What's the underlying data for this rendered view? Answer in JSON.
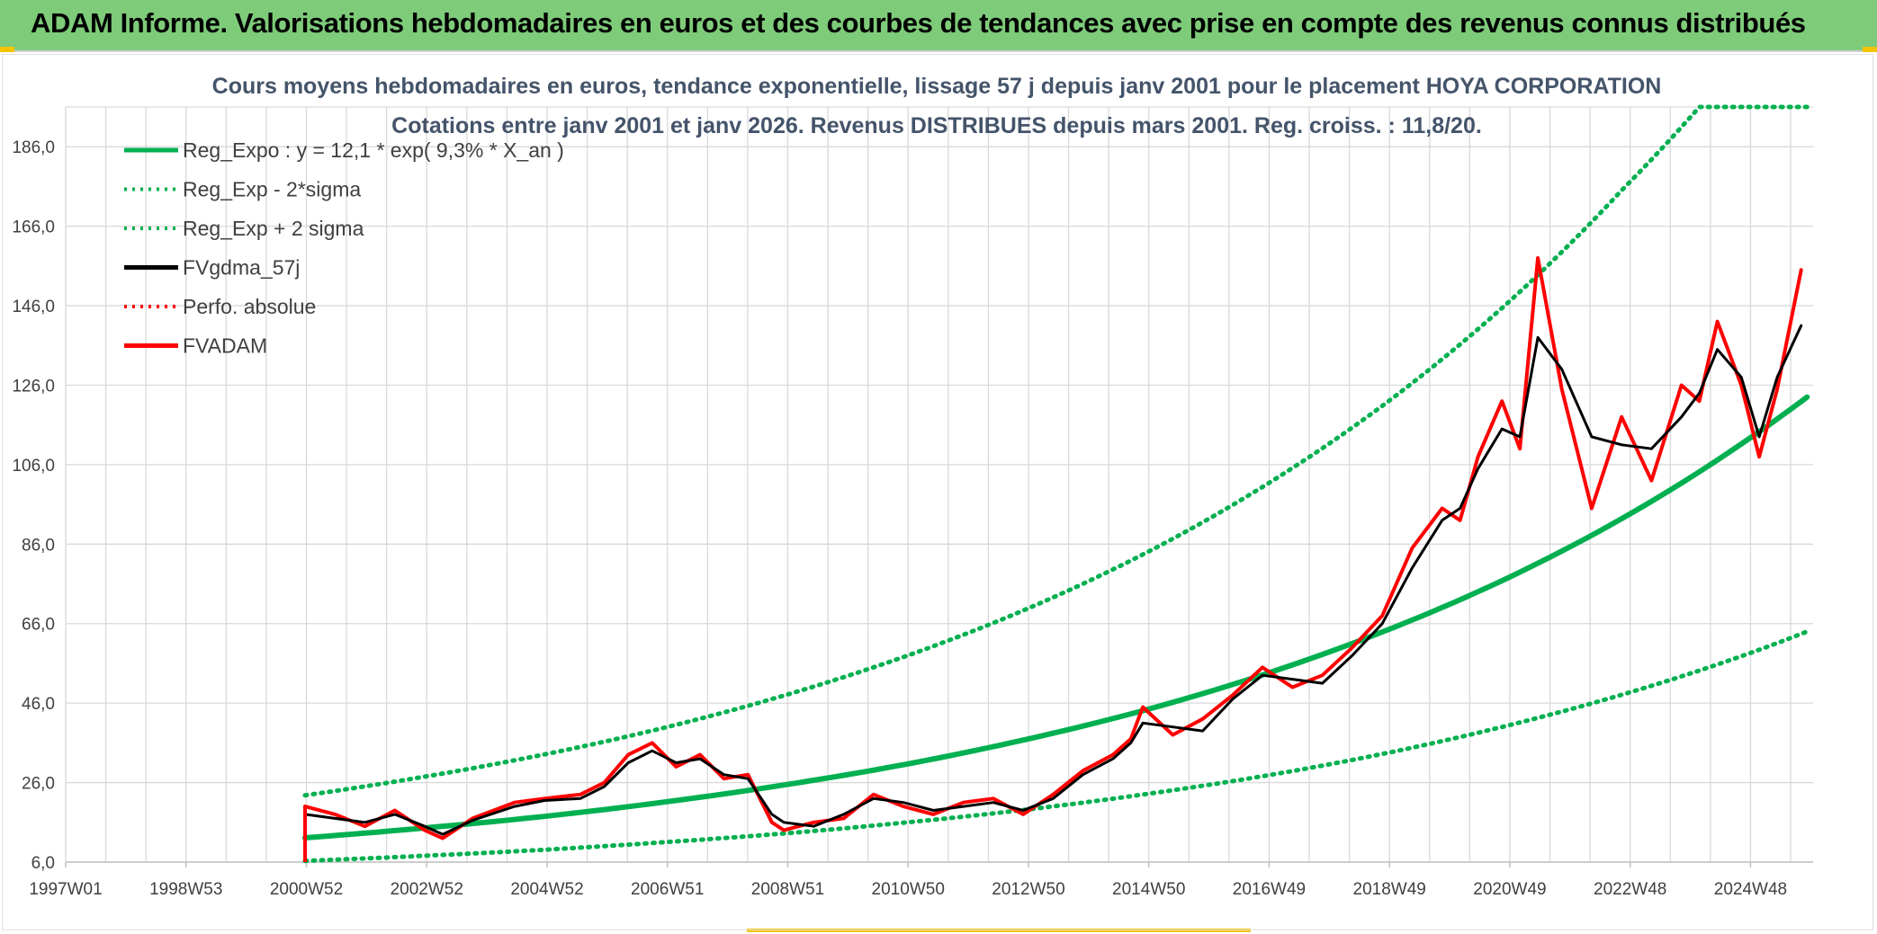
{
  "banner": {
    "title": "ADAM Informe. Valorisations hebdomadaires en euros et des courbes de tendances avec prise en compte des revenus connus distribués"
  },
  "colors": {
    "banner": "#7ecb7a",
    "reg_expo": "#00b050",
    "fvgdma": "#000000",
    "fvadam": "#ff0000",
    "perfo": "#ff0000",
    "grid": "#d9d9d9",
    "accent": "#f5c400"
  },
  "chart_data": {
    "type": "line",
    "title_line1": "Cours moyens hebdomadaires en euros, tendance exponentielle, lissage 57 j depuis janv 2001 pour le placement HOYA CORPORATION",
    "title_line2": "Cotations entre janv 2001 et janv 2026. Revenus DISTRIBUES depuis mars 2001. Reg. croiss. : 11,8/20.",
    "x_tick_labels": [
      "1997W01",
      "1998W53",
      "2000W52",
      "2002W52",
      "2004W52",
      "2006W51",
      "2008W51",
      "2010W50",
      "2012W50",
      "2014W50",
      "2016W49",
      "2018W49",
      "2020W49",
      "2022W48",
      "2024W48"
    ],
    "x_range": [
      1997.0,
      2026.2
    ],
    "y_tick_labels": [
      "6,0",
      "26,0",
      "46,0",
      "66,0",
      "86,0",
      "106,0",
      "126,0",
      "146,0",
      "166,0",
      "186,0"
    ],
    "y_range": [
      6,
      196
    ],
    "legend": [
      {
        "label": "Reg_Expo : y = 12,1 * exp( 9,3% *  X_an )",
        "style": "solid",
        "color": "#00b050"
      },
      {
        "label": "Reg_Exp - 2*sigma",
        "style": "dotted",
        "color": "#00b050"
      },
      {
        "label": "Reg_Exp + 2 sigma",
        "style": "dotted",
        "color": "#00b050"
      },
      {
        "label": "FVgdma_57j",
        "style": "solid",
        "color": "#000000"
      },
      {
        "label": "Perfo. absolue",
        "style": "dotted",
        "color": "#ff0000"
      },
      {
        "label": "FVADAM",
        "style": "solid",
        "color": "#ff0000"
      }
    ],
    "series": [
      {
        "name": "Reg_Expo",
        "x": [
          2001.0,
          2003.0,
          2005.0,
          2007.0,
          2009.0,
          2011.0,
          2013.0,
          2015.0,
          2017.0,
          2019.0,
          2021.0,
          2023.0,
          2025.0,
          2026.1
        ],
        "y": [
          12.1,
          14.6,
          17.5,
          21.1,
          25.4,
          30.5,
          36.7,
          44.1,
          53.1,
          63.9,
          76.8,
          92.4,
          111.2,
          123.0
        ]
      },
      {
        "name": "Reg_Exp - 2*sigma",
        "x": [
          2001.0,
          2003.0,
          2005.0,
          2007.0,
          2009.0,
          2011.0,
          2013.0,
          2015.0,
          2017.0,
          2019.0,
          2021.0,
          2023.0,
          2025.0,
          2026.1
        ],
        "y": [
          6.3,
          7.6,
          9.1,
          11.0,
          13.2,
          15.9,
          19.1,
          23.0,
          27.6,
          33.2,
          40.0,
          48.1,
          57.8,
          64.0
        ]
      },
      {
        "name": "Reg_Exp + 2 sigma",
        "x": [
          2001.0,
          2003.0,
          2005.0,
          2007.0,
          2009.0,
          2011.0,
          2013.0,
          2015.0,
          2017.0,
          2019.0,
          2021.0,
          2023.0,
          2024.3,
          2026.1
        ],
        "y": [
          22.8,
          27.5,
          33.1,
          39.8,
          47.9,
          57.6,
          69.3,
          83.4,
          100.4,
          120.8,
          145.4,
          175.0,
          196.0,
          196.0
        ]
      },
      {
        "name": "FVgdma_57j",
        "x": [
          2001.0,
          2001.5,
          2002.0,
          2002.5,
          2003.0,
          2003.3,
          2003.8,
          2004.5,
          2005.0,
          2005.6,
          2006.0,
          2006.4,
          2006.8,
          2007.2,
          2007.6,
          2008.0,
          2008.4,
          2008.8,
          2009.0,
          2009.5,
          2010.0,
          2010.5,
          2011.0,
          2011.5,
          2012.0,
          2012.5,
          2013.0,
          2013.5,
          2014.0,
          2014.5,
          2014.8,
          2015.0,
          2015.5,
          2016.0,
          2016.5,
          2017.0,
          2017.5,
          2018.0,
          2018.5,
          2019.0,
          2019.5,
          2020.0,
          2020.3,
          2020.6,
          2021.0,
          2021.3,
          2021.6,
          2022.0,
          2022.5,
          2023.0,
          2023.5,
          2024.0,
          2024.3,
          2024.6,
          2025.0,
          2025.3,
          2025.6,
          2026.0
        ],
        "y": [
          18.0,
          17.0,
          16.0,
          18.0,
          15.0,
          13.0,
          16.5,
          20.0,
          21.5,
          22.0,
          25.0,
          31.0,
          34.0,
          31.0,
          32.0,
          28.0,
          27.0,
          18.0,
          16.0,
          15.0,
          18.0,
          22.0,
          21.0,
          19.0,
          20.0,
          21.0,
          19.0,
          22.0,
          28.0,
          32.0,
          36.0,
          41.0,
          40.0,
          39.0,
          47.0,
          53.0,
          52.0,
          51.0,
          58.0,
          66.0,
          80.0,
          92.0,
          95.0,
          105.0,
          115.0,
          113.0,
          138.0,
          130.0,
          113.0,
          111.0,
          110.0,
          118.0,
          124.0,
          135.0,
          128.0,
          113.0,
          128.0,
          141.0
        ]
      },
      {
        "name": "FVADAM",
        "x": [
          2001.0,
          2001.5,
          2002.0,
          2002.5,
          2003.0,
          2003.3,
          2003.8,
          2004.5,
          2005.0,
          2005.6,
          2006.0,
          2006.4,
          2006.8,
          2007.2,
          2007.6,
          2008.0,
          2008.4,
          2008.8,
          2009.0,
          2009.5,
          2010.0,
          2010.5,
          2011.0,
          2011.5,
          2012.0,
          2012.5,
          2013.0,
          2013.5,
          2014.0,
          2014.5,
          2014.8,
          2015.0,
          2015.5,
          2016.0,
          2016.5,
          2017.0,
          2017.5,
          2018.0,
          2018.5,
          2019.0,
          2019.5,
          2020.0,
          2020.3,
          2020.6,
          2021.0,
          2021.3,
          2021.6,
          2022.0,
          2022.5,
          2023.0,
          2023.5,
          2024.0,
          2024.3,
          2024.6,
          2025.0,
          2025.3,
          2025.6,
          2026.0
        ],
        "y": [
          20.0,
          18.0,
          15.0,
          19.0,
          14.0,
          12.0,
          17.0,
          21.0,
          22.0,
          23.0,
          26.0,
          33.0,
          36.0,
          30.0,
          33.0,
          27.0,
          28.0,
          16.0,
          14.0,
          16.0,
          17.0,
          23.0,
          20.0,
          18.0,
          21.0,
          22.0,
          18.0,
          23.0,
          29.0,
          33.0,
          37.0,
          45.0,
          38.0,
          42.0,
          48.0,
          55.0,
          50.0,
          53.0,
          60.0,
          68.0,
          85.0,
          95.0,
          92.0,
          108.0,
          122.0,
          110.0,
          158.0,
          125.0,
          95.0,
          118.0,
          102.0,
          126.0,
          122.0,
          142.0,
          126.0,
          108.0,
          125.0,
          155.0
        ]
      }
    ]
  }
}
